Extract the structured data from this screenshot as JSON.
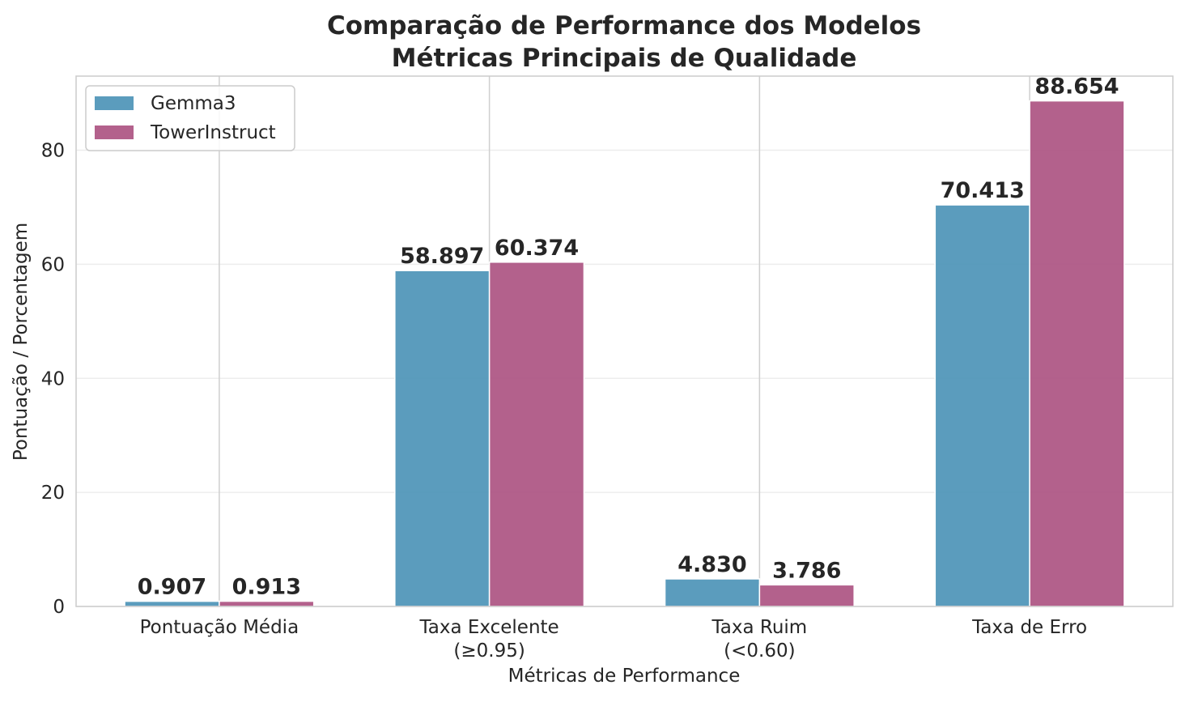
{
  "chart_data": {
    "type": "bar",
    "title": "Comparação de Performance dos Modelos",
    "subtitle": "Métricas Principais de Qualidade",
    "xlabel": "Métricas de Performance",
    "ylabel": "Pontuação / Porcentagem",
    "categories": [
      [
        "Pontuação Média"
      ],
      [
        "Taxa Excelente",
        "(≥0.95)"
      ],
      [
        "Taxa Ruim",
        "(<0.60)"
      ],
      [
        "Taxa de Erro"
      ]
    ],
    "series": [
      {
        "name": "Gemma3",
        "color": "#4f95b8",
        "values": [
          0.907,
          58.897,
          4.83,
          70.413
        ],
        "labels": [
          "0.907",
          "58.897",
          "4.830",
          "70.413"
        ]
      },
      {
        "name": "TowerInstruct",
        "color": "#ad5583",
        "values": [
          0.913,
          60.374,
          3.786,
          88.654
        ],
        "labels": [
          "0.913",
          "60.374",
          "3.786",
          "88.654"
        ]
      }
    ],
    "ylim": [
      0,
      93
    ],
    "yticks": [
      0,
      20,
      40,
      60,
      80
    ],
    "grid": true,
    "legend_position": "top-left"
  }
}
